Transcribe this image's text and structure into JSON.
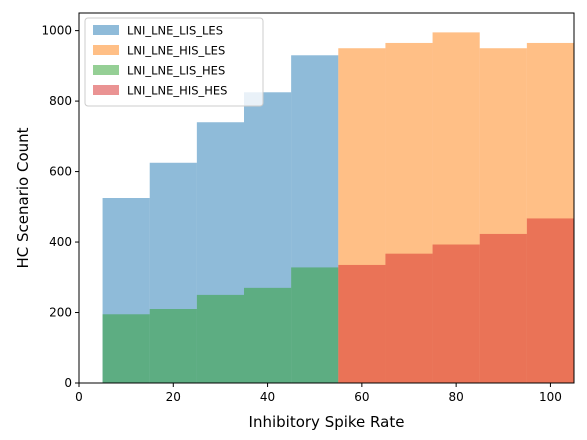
{
  "chart_data": {
    "type": "bar",
    "subtype": "overlaid-histogram",
    "xlabel": "Inhibitory Spike Rate",
    "ylabel": "HC Scenario Count",
    "xlim": [
      0,
      105
    ],
    "ylim": [
      0,
      1050
    ],
    "xticks": [
      0,
      20,
      40,
      60,
      80,
      100
    ],
    "yticks": [
      0,
      200,
      400,
      600,
      800,
      1000
    ],
    "legend_position": "top-left",
    "series": [
      {
        "name": "LNI_LNE_LIS_LES",
        "color": "#1f77b4",
        "alpha": 0.5,
        "bins": [
          [
            5,
            15,
            525
          ],
          [
            15,
            25,
            625
          ],
          [
            25,
            35,
            740
          ],
          [
            35,
            45,
            825
          ],
          [
            45,
            55,
            930
          ]
        ]
      },
      {
        "name": "LNI_LNE_HIS_LES",
        "color": "#ff7f0e",
        "alpha": 0.5,
        "bins": [
          [
            55,
            65,
            950
          ],
          [
            65,
            75,
            965
          ],
          [
            75,
            85,
            995
          ],
          [
            85,
            95,
            950
          ],
          [
            95,
            105,
            965
          ]
        ]
      },
      {
        "name": "LNI_LNE_LIS_HES",
        "color": "#2ca02c",
        "alpha": 0.5,
        "bins": [
          [
            5,
            15,
            195
          ],
          [
            15,
            25,
            210
          ],
          [
            25,
            35,
            250
          ],
          [
            35,
            45,
            270
          ],
          [
            45,
            55,
            328
          ]
        ]
      },
      {
        "name": "LNI_LNE_HIS_HES",
        "color": "#d62728",
        "alpha": 0.5,
        "bins": [
          [
            55,
            65,
            335
          ],
          [
            65,
            75,
            367
          ],
          [
            75,
            85,
            393
          ],
          [
            85,
            95,
            423
          ],
          [
            95,
            105,
            467
          ]
        ]
      }
    ]
  }
}
